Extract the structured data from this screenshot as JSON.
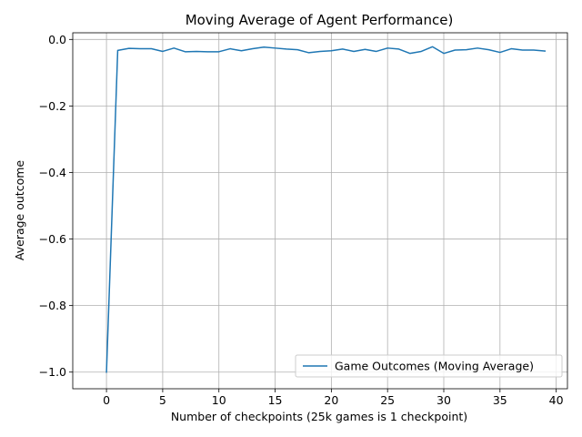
{
  "chart_data": {
    "type": "line",
    "title": "Moving Average of Agent Performance)",
    "xlabel": "Number of checkpoints (25k games is 1 checkpoint)",
    "ylabel": "Average outcome",
    "xlim": [
      -3,
      41
    ],
    "ylim": [
      -1.05,
      0.02
    ],
    "xticks": [
      0,
      5,
      10,
      15,
      20,
      25,
      30,
      35,
      40
    ],
    "yticks": [
      -1.0,
      -0.8,
      -0.6,
      -0.4,
      -0.2,
      0.0
    ],
    "xtick_labels": [
      "0",
      "5",
      "10",
      "15",
      "20",
      "25",
      "30",
      "35",
      "40"
    ],
    "ytick_labels": [
      "−1.0",
      "−0.8",
      "−0.6",
      "−0.4",
      "−0.2",
      "0.0"
    ],
    "grid": true,
    "legend_position": "lower right",
    "series": [
      {
        "name": "Game Outcomes (Moving Average)",
        "color": "#1f77b4",
        "x": [
          0,
          1,
          2,
          3,
          4,
          5,
          6,
          7,
          8,
          9,
          10,
          11,
          12,
          13,
          14,
          15,
          16,
          17,
          18,
          19,
          20,
          21,
          22,
          23,
          24,
          25,
          26,
          27,
          28,
          29,
          30,
          31,
          32,
          33,
          34,
          35,
          36,
          37,
          38,
          39
        ],
        "y": [
          -1.0,
          -0.033,
          -0.027,
          -0.028,
          -0.028,
          -0.036,
          -0.026,
          -0.037,
          -0.036,
          -0.037,
          -0.037,
          -0.028,
          -0.034,
          -0.028,
          -0.023,
          -0.026,
          -0.029,
          -0.031,
          -0.04,
          -0.036,
          -0.034,
          -0.029,
          -0.036,
          -0.03,
          -0.036,
          -0.026,
          -0.029,
          -0.042,
          -0.036,
          -0.022,
          -0.042,
          -0.032,
          -0.031,
          -0.026,
          -0.031,
          -0.039,
          -0.028,
          -0.032,
          -0.032,
          -0.035
        ]
      }
    ]
  }
}
